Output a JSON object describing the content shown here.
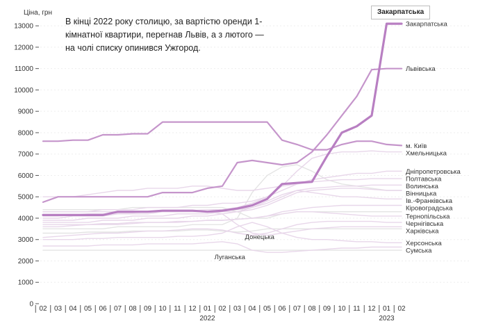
{
  "annotation": "В кінці 2022 року столицю, за вартістю оренди 1-кімнатної квартири, перегнав Львів, а з лютого — на чолі списку опинився Ужгород.",
  "tooltip": "Закарпатська",
  "chart_data": {
    "type": "line",
    "ylabel": "Ціна, грн",
    "ylim": [
      0,
      13200
    ],
    "yticks": [
      0,
      1000,
      2000,
      3000,
      4000,
      5000,
      6000,
      7000,
      8000,
      9000,
      10000,
      11000,
      12000,
      13000
    ],
    "xlabels": [
      "02",
      "03",
      "04",
      "05",
      "06",
      "07",
      "08",
      "09",
      "10",
      "11",
      "12",
      "01",
      "02",
      "03",
      "04",
      "05",
      "06",
      "07",
      "08",
      "09",
      "10",
      "11",
      "12",
      "01",
      "02"
    ],
    "year_labels": [
      {
        "at": 11,
        "label": "2022"
      },
      {
        "at": 23,
        "label": "2023"
      }
    ],
    "colors": {
      "highlight": "#b87fc2",
      "kyiv": "#c595cb",
      "background": "#e8d7ea",
      "gray": "#e4e4e4"
    },
    "series": [
      {
        "name": "Закарпатська",
        "style": "highlight",
        "values": [
          4150,
          4150,
          4150,
          4150,
          4150,
          4300,
          4300,
          4300,
          4350,
          4350,
          4350,
          4300,
          4350,
          4450,
          4600,
          4900,
          5600,
          5650,
          5700,
          6900,
          8000,
          8300,
          8800,
          13100,
          13100
        ]
      },
      {
        "name": "Львівська",
        "style": "kyiv",
        "values": [
          4750,
          5000,
          5000,
          5000,
          5000,
          5000,
          5000,
          5000,
          5200,
          5200,
          5200,
          5400,
          5500,
          6600,
          6700,
          6600,
          6500,
          6600,
          7100,
          7900,
          8800,
          9700,
          10950,
          11000,
          11000
        ]
      },
      {
        "name": "м. Київ",
        "style": "kyiv",
        "values": [
          7600,
          7600,
          7650,
          7650,
          7900,
          7900,
          7950,
          7950,
          8500,
          8500,
          8500,
          8500,
          8500,
          8500,
          8500,
          8500,
          7650,
          7450,
          7200,
          7200,
          7450,
          7600,
          7600,
          7450,
          7400
        ]
      },
      {
        "name": "Хмельницька",
        "style": "background",
        "values": [
          4100,
          4100,
          4150,
          4200,
          4200,
          4250,
          4250,
          4300,
          4300,
          4300,
          4350,
          4400,
          4400,
          4500,
          4700,
          5000,
          5500,
          6200,
          6800,
          7000,
          7100,
          7100,
          7150,
          7100,
          7100
        ]
      },
      {
        "name": "Дніпропетровська",
        "style": "background",
        "values": [
          5000,
          5000,
          5000,
          5100,
          5200,
          5300,
          5300,
          5400,
          5400,
          5400,
          5500,
          5500,
          5400,
          5300,
          5300,
          5400,
          5500,
          5600,
          5800,
          5900,
          6000,
          6100,
          6100,
          6200,
          6200
        ]
      },
      {
        "name": "Полтавська",
        "style": "background",
        "values": [
          4300,
          4300,
          4300,
          4300,
          4400,
          4400,
          4400,
          4500,
          4500,
          4500,
          4600,
          4600,
          4700,
          4700,
          4800,
          5000,
          5300,
          5600,
          5700,
          5750,
          5800,
          5800,
          5850,
          5850,
          5850
        ]
      },
      {
        "name": "Волинська",
        "style": "background",
        "values": [
          4000,
          4000,
          4100,
          4100,
          4100,
          4200,
          4200,
          4200,
          4300,
          4300,
          4300,
          4300,
          4400,
          4400,
          4500,
          4700,
          5000,
          5300,
          5400,
          5450,
          5500,
          5500,
          5550,
          5550,
          5550
        ]
      },
      {
        "name": "Вінницька",
        "style": "background",
        "values": [
          3900,
          3900,
          3900,
          4000,
          4000,
          4000,
          4100,
          4100,
          4100,
          4200,
          4200,
          4200,
          4300,
          4300,
          4400,
          4600,
          4900,
          5200,
          5300,
          5350,
          5400,
          5400,
          5350,
          5300,
          5300
        ]
      },
      {
        "name": "Ів.-Франківська",
        "style": "background",
        "values": [
          3800,
          3800,
          3800,
          3800,
          3900,
          3900,
          3900,
          4000,
          4000,
          4000,
          4100,
          4100,
          4200,
          4300,
          4500,
          4800,
          5100,
          5300,
          5200,
          5100,
          5000,
          5000,
          4950,
          4900,
          4900
        ]
      },
      {
        "name": "Кіровоградська",
        "style": "background",
        "values": [
          3600,
          3600,
          3650,
          3700,
          3700,
          3700,
          3750,
          3800,
          3800,
          3800,
          3850,
          3900,
          3900,
          3950,
          4000,
          4100,
          4300,
          4400,
          4500,
          4550,
          4600,
          4600,
          4600,
          4600,
          4600
        ]
      },
      {
        "name": "Тернопільська",
        "style": "background",
        "values": [
          3700,
          3700,
          3700,
          3700,
          3750,
          3750,
          3800,
          3800,
          3800,
          3850,
          3850,
          3900,
          3900,
          3950,
          4000,
          4100,
          4200,
          4300,
          4300,
          4250,
          4200,
          4150,
          4100,
          4100,
          4100
        ]
      },
      {
        "name": "Чернігівська",
        "style": "background",
        "values": [
          3100,
          3150,
          3200,
          3250,
          3300,
          3300,
          3350,
          3400,
          3400,
          3450,
          3500,
          3500,
          3450,
          3300,
          3200,
          3300,
          3500,
          3700,
          3800,
          3850,
          3850,
          3850,
          3850,
          3800,
          3800
        ]
      },
      {
        "name": "Харківська",
        "style": "background",
        "values": [
          4300,
          4300,
          4300,
          4300,
          4300,
          4300,
          4300,
          4300,
          4300,
          4300,
          4300,
          4300,
          4200,
          3700,
          3300,
          3200,
          3300,
          3400,
          3500,
          3550,
          3600,
          3600,
          3600,
          3600,
          3600
        ]
      },
      {
        "name": "Херсонська",
        "style": "background",
        "values": [
          3000,
          3000,
          3000,
          3050,
          3050,
          3100,
          3100,
          3100,
          3100,
          3150,
          3150,
          3200,
          3300,
          3600,
          3800,
          3600,
          3300,
          3100,
          3000,
          3000,
          2950,
          2900,
          2900,
          2850,
          2850
        ]
      },
      {
        "name": "Сумська",
        "style": "background",
        "values": [
          2700,
          2700,
          2700,
          2700,
          2750,
          2750,
          2750,
          2800,
          2800,
          2800,
          2800,
          2850,
          2900,
          2800,
          2500,
          2400,
          2400,
          2450,
          2500,
          2550,
          2600,
          2600,
          2650,
          2650,
          2650
        ]
      },
      {
        "name": "Донецька",
        "style": "gray",
        "values": [
          3300,
          3300,
          3300,
          3350,
          3350,
          3350,
          3400,
          3400,
          3400,
          3400,
          3450,
          3450,
          3400,
          3350,
          3400,
          3500,
          3500,
          3500,
          3500,
          3500,
          3500,
          3500,
          3500,
          3500,
          3500
        ]
      },
      {
        "name": "Луганська",
        "style": "gray",
        "values": [
          2500,
          2500,
          2500,
          2500,
          2500,
          2500,
          2500,
          2500,
          2500,
          2500,
          2500,
          2500,
          2500,
          2500,
          2500,
          2500,
          2500,
          2500,
          2500,
          2500,
          2500,
          2500,
          2500,
          2500,
          2500
        ]
      },
      {
        "name": "",
        "style": "gray",
        "values": [
          3500,
          3500,
          3500,
          3500,
          3500,
          3600,
          3600,
          3600,
          3600,
          3600,
          3700,
          3700,
          3700,
          4000,
          5200,
          6000,
          6400,
          6500,
          6200,
          5800,
          5600,
          5500,
          5400,
          5300,
          5300
        ]
      },
      {
        "name": "",
        "style": "gray",
        "values": [
          4400,
          4400,
          4400,
          4400,
          4400,
          4400,
          4500,
          4500,
          4500,
          4500,
          4500,
          4500,
          4500,
          4300,
          4000,
          4000,
          4200,
          4300,
          4300,
          4300,
          4300,
          4300,
          4300,
          4300,
          4300
        ]
      }
    ]
  }
}
